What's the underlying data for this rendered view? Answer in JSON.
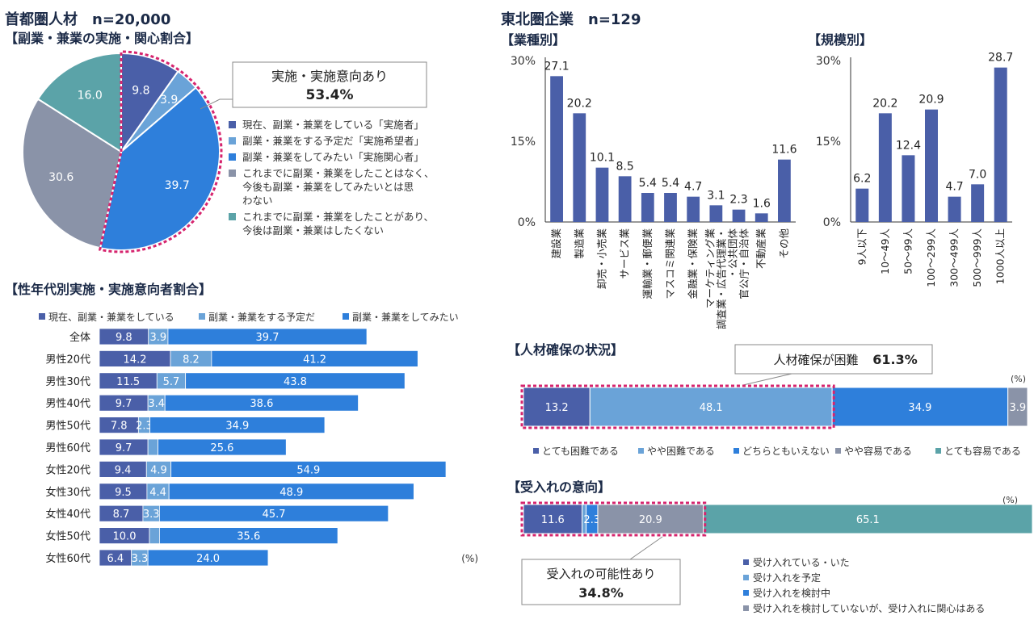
{
  "left": {
    "title_main": "首都圏人材　n=20,000",
    "title_sub": "【副業・兼業の実施・関心割合】",
    "callout": {
      "line1": "実施・実施意向あり",
      "line2": "53.4%"
    },
    "section2_title": "【性年代別実施・実施意向者割合】",
    "percent_unit": "(%)"
  },
  "right": {
    "title_main": "東北圏企業　n=129",
    "industry_title": "【業種別】",
    "scale_title": "【規模別】",
    "jinzai_title": "【人材確保の状況】",
    "jinzai_callout": {
      "line1": "人材確保が困難",
      "line2": "61.3%"
    },
    "jinzai_unit": "(%)",
    "ukeire_title": "【受入れの意向】",
    "ukeire_callout": {
      "line1": "受入れの可能性あり",
      "line2": "34.8%"
    },
    "ukeire_unit": "(%)"
  },
  "chart_data": [
    {
      "type": "pie",
      "title": "【副業・兼業の実施・関心割合】",
      "labels": [
        "現在、副業・兼業をしている「実施者」",
        "副業・兼業をする予定だ「実施希望者」",
        "副業・兼業をしてみたい「実施関心者」",
        "これまでに副業・兼業をしたことはなく、今後も副業・兼業をしてみたいとは思わない",
        "これまでに副業・兼業をしたことがあり、今後は副業・兼業はしたくない"
      ],
      "legend_lines": [
        [
          "現在、副業・兼業をしている「実施者」"
        ],
        [
          "副業・兼業をする予定だ「実施希望者」"
        ],
        [
          "副業・兼業をしてみたい「実施関心者」"
        ],
        [
          "これまでに副業・兼業をしたことはなく、",
          "今後も副業・兼業をしてみたいとは思",
          "わない"
        ],
        [
          "これまでに副業・兼業をしたことがあり、",
          "今後は副業・兼業はしたくない"
        ]
      ],
      "values": [
        9.8,
        3.9,
        39.7,
        30.6,
        16.0
      ],
      "value_labels": [
        "9.8",
        "3.9",
        "39.7",
        "30.6",
        "16.0"
      ],
      "colors": [
        "#4a5fa8",
        "#6aa3d8",
        "#2e7fdb",
        "#8a93a8",
        "#5ba3a8"
      ]
    },
    {
      "type": "bar",
      "orientation": "horizontal",
      "stacked": true,
      "title": "【性年代別実施・実施意向者割合】",
      "categories": [
        "全体",
        "男性20代",
        "男性30代",
        "男性40代",
        "男性50代",
        "男性60代",
        "女性20代",
        "女性30代",
        "女性40代",
        "女性50代",
        "女性60代"
      ],
      "series": [
        {
          "name": "現在、副業・兼業をしている",
          "color": "#4a5fa8",
          "values": [
            9.8,
            14.2,
            11.5,
            9.7,
            7.8,
            9.7,
            9.4,
            9.5,
            8.7,
            10.0,
            6.4
          ],
          "labels": [
            "9.8",
            "14.2",
            "11.5",
            "9.7",
            "7.8",
            "9.7",
            "9.4",
            "9.5",
            "8.7",
            "10.0",
            "6.4"
          ]
        },
        {
          "name": "副業・兼業をする予定だ",
          "color": "#6aa3d8",
          "values": [
            3.9,
            8.2,
            5.7,
            3.4,
            2.3,
            2.0,
            4.9,
            4.4,
            3.3,
            2.0,
            3.3
          ],
          "labels": [
            "3.9",
            "8.2",
            "5.7",
            "3.4",
            "2.3",
            "",
            "4.9",
            "4.4",
            "3.3",
            "",
            "3.3"
          ]
        },
        {
          "name": "副業・兼業をしてみたい",
          "color": "#2e7fdb",
          "values": [
            39.7,
            41.2,
            43.8,
            38.6,
            34.9,
            25.6,
            54.9,
            48.9,
            45.7,
            35.6,
            24.0
          ],
          "labels": [
            "39.7",
            "41.2",
            "43.8",
            "38.6",
            "34.9",
            "25.6",
            "54.9",
            "48.9",
            "45.7",
            "35.6",
            "24.0"
          ]
        }
      ]
    },
    {
      "type": "bar",
      "title": "【業種別】",
      "categories": [
        "建設業",
        "製造業",
        "卸売・小売業",
        "サービス業",
        "運輸業・郵便業",
        "マスコミ関連業",
        "金融業・保険業",
        "調査業・広告代理業・マーケティング業",
        "官公庁・自治体・公共団体",
        "不動産業",
        "その他"
      ],
      "category_lines": [
        [
          "建設業"
        ],
        [
          "製造業"
        ],
        [
          "卸売・小売業"
        ],
        [
          "サービス業"
        ],
        [
          "運輸業・郵便業"
        ],
        [
          "マスコミ関連業"
        ],
        [
          "金融業・保険業"
        ],
        [
          "マーケティング業",
          "調査業・広告代理業・"
        ],
        [
          "・公共団体",
          "官公庁・自治体"
        ],
        [
          "不動産業"
        ],
        [
          "その他"
        ]
      ],
      "values": [
        27.1,
        20.2,
        10.1,
        8.5,
        5.4,
        5.4,
        4.7,
        3.1,
        2.3,
        1.6,
        11.6
      ],
      "value_labels": [
        "27.1",
        "20.2",
        "10.1",
        "8.5",
        "5.4",
        "5.4",
        "4.7",
        "3.1",
        "2.3",
        "1.6",
        "11.6"
      ],
      "ylim": [
        0,
        30
      ],
      "yticks": [
        "0%",
        "15%",
        "30%"
      ],
      "color": "#4a5fa8"
    },
    {
      "type": "bar",
      "title": "【規模別】",
      "categories": [
        "9人以下",
        "10～49人",
        "50～99人",
        "100～299人",
        "300～499人",
        "500～999人",
        "1000人以上"
      ],
      "values": [
        6.2,
        20.2,
        12.4,
        20.9,
        4.7,
        7.0,
        28.7
      ],
      "value_labels": [
        "6.2",
        "20.2",
        "12.4",
        "20.9",
        "4.7",
        "7.0",
        "28.7"
      ],
      "ylim": [
        0,
        30
      ],
      "yticks": [
        "0%",
        "15%",
        "30%"
      ],
      "color": "#4a5fa8"
    },
    {
      "type": "bar",
      "orientation": "horizontal",
      "stacked": true,
      "title": "【人材確保の状況】",
      "categories": [
        "人材確保"
      ],
      "series": [
        {
          "name": "とても困難である",
          "color": "#4a5fa8",
          "values": [
            13.2
          ],
          "labels": [
            "13.2"
          ]
        },
        {
          "name": "やや困難である",
          "color": "#6aa3d8",
          "values": [
            48.1
          ],
          "labels": [
            "48.1"
          ]
        },
        {
          "name": "どちらともいえない",
          "color": "#2e7fdb",
          "values": [
            34.9
          ],
          "labels": [
            "34.9"
          ]
        },
        {
          "name": "やや容易である",
          "color": "#8a93a8",
          "values": [
            3.9
          ],
          "labels": [
            "3.9"
          ]
        },
        {
          "name": "とても容易である",
          "color": "#5ba3a8",
          "values": [
            0.0
          ],
          "labels": [
            ""
          ]
        }
      ]
    },
    {
      "type": "bar",
      "orientation": "horizontal",
      "stacked": true,
      "title": "【受入れの意向】",
      "categories": [
        "受入れ"
      ],
      "series": [
        {
          "name": "受け入れている・いた",
          "color": "#4a5fa8",
          "values": [
            11.6
          ],
          "labels": [
            "11.6"
          ]
        },
        {
          "name": "受け入れを予定",
          "color": "#6aa3d8",
          "values": [
            0.8
          ],
          "labels": [
            ""
          ]
        },
        {
          "name": "受け入れを検討中",
          "color": "#2e7fdb",
          "values": [
            2.3
          ],
          "labels": [
            "2.3"
          ]
        },
        {
          "name": "受け入れを検討していないが、受け入れに関心はある",
          "color": "#8a93a8",
          "values": [
            20.9
          ],
          "labels": [
            "20.9"
          ]
        },
        {
          "name": "",
          "color": "#5ba3a8",
          "values": [
            65.1
          ],
          "labels": [
            "65.1"
          ]
        }
      ],
      "legend_count": 4
    }
  ]
}
